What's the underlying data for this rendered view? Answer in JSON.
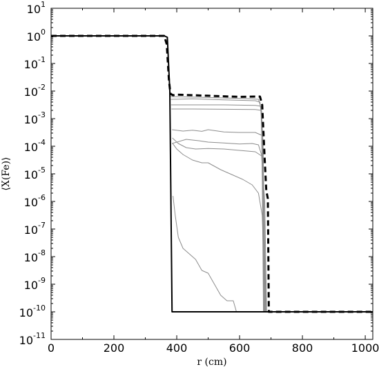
{
  "chart_data": {
    "type": "line",
    "title": "",
    "xlabel": "r (cm)",
    "ylabel": "⟨X(Fe)⟩",
    "xlim": [
      0,
      1024
    ],
    "ylim_exponents": [
      -11,
      1
    ],
    "y_scale": "log",
    "grid": false,
    "x_ticks": [
      0,
      200,
      400,
      600,
      800,
      1000
    ],
    "y_ticks": [
      {
        "base": "10",
        "exp": "1"
      },
      {
        "base": "10",
        "exp": "0"
      },
      {
        "base": "10",
        "exp": "-1"
      },
      {
        "base": "10",
        "exp": "-2"
      },
      {
        "base": "10",
        "exp": "-3"
      },
      {
        "base": "10",
        "exp": "-4"
      },
      {
        "base": "10",
        "exp": "-5"
      },
      {
        "base": "10",
        "exp": "-6"
      },
      {
        "base": "10",
        "exp": "-7"
      },
      {
        "base": "10",
        "exp": "-8"
      },
      {
        "base": "10",
        "exp": "-9"
      },
      {
        "base": "10",
        "exp": "-10"
      },
      {
        "base": "10",
        "exp": "-11"
      }
    ],
    "series": [
      {
        "style": "solid-black",
        "points": [
          [
            0,
            0
          ],
          [
            360,
            0
          ],
          [
            370,
            -0.05
          ],
          [
            378,
            -2
          ],
          [
            385,
            -10
          ],
          [
            1024,
            -10
          ]
        ]
      },
      {
        "style": "dashed-black",
        "points": [
          [
            0,
            0
          ],
          [
            360,
            0
          ],
          [
            368,
            -0.3
          ],
          [
            375,
            -1.6
          ],
          [
            380,
            -2.1
          ],
          [
            388,
            -2.15
          ],
          [
            400,
            -2.13
          ],
          [
            450,
            -2.15
          ],
          [
            500,
            -2.17
          ],
          [
            550,
            -2.19
          ],
          [
            600,
            -2.21
          ],
          [
            650,
            -2.2
          ],
          [
            665,
            -2.2
          ],
          [
            672,
            -2.5
          ],
          [
            680,
            -4.5
          ],
          [
            685,
            -5.6
          ],
          [
            690,
            -5.9
          ],
          [
            693,
            -10
          ],
          [
            1024,
            -10
          ]
        ]
      },
      {
        "style": "gray",
        "points": [
          [
            380,
            -2.2
          ],
          [
            450,
            -2.22
          ],
          [
            550,
            -2.25
          ],
          [
            640,
            -2.28
          ],
          [
            660,
            -2.3
          ],
          [
            668,
            -2.6
          ],
          [
            672,
            -4.5
          ],
          [
            676,
            -10
          ]
        ]
      },
      {
        "style": "gray",
        "points": [
          [
            381,
            -2.3
          ],
          [
            450,
            -2.28
          ],
          [
            550,
            -2.32
          ],
          [
            650,
            -2.35
          ],
          [
            665,
            -2.4
          ],
          [
            670,
            -3
          ],
          [
            674,
            -7
          ],
          [
            678,
            -10
          ]
        ]
      },
      {
        "style": "gray",
        "points": [
          [
            382,
            -2.5
          ],
          [
            450,
            -2.5
          ],
          [
            550,
            -2.5
          ],
          [
            650,
            -2.52
          ],
          [
            668,
            -2.55
          ],
          [
            673,
            -3.5
          ],
          [
            678,
            -10
          ]
        ]
      },
      {
        "style": "gray",
        "points": [
          [
            383,
            -2.65
          ],
          [
            450,
            -2.65
          ],
          [
            550,
            -2.66
          ],
          [
            650,
            -2.67
          ],
          [
            670,
            -2.7
          ],
          [
            675,
            -4
          ],
          [
            680,
            -10
          ]
        ]
      },
      {
        "style": "gray",
        "points": [
          [
            385,
            -3.4
          ],
          [
            420,
            -3.45
          ],
          [
            450,
            -3.42
          ],
          [
            480,
            -3.46
          ],
          [
            500,
            -3.4
          ],
          [
            550,
            -3.48
          ],
          [
            600,
            -3.5
          ],
          [
            650,
            -3.5
          ],
          [
            670,
            -3.6
          ],
          [
            677,
            -6
          ],
          [
            682,
            -10
          ]
        ]
      },
      {
        "style": "gray",
        "points": [
          [
            385,
            -3.9
          ],
          [
            430,
            -3.75
          ],
          [
            470,
            -3.8
          ],
          [
            500,
            -3.85
          ],
          [
            550,
            -3.88
          ],
          [
            600,
            -3.92
          ],
          [
            640,
            -3.9
          ],
          [
            660,
            -3.95
          ],
          [
            675,
            -4.5
          ],
          [
            684,
            -10
          ]
        ]
      },
      {
        "style": "gray",
        "points": [
          [
            386,
            -3.7
          ],
          [
            405,
            -3.9
          ],
          [
            430,
            -4.05
          ],
          [
            460,
            -4.1
          ],
          [
            500,
            -4.08
          ],
          [
            550,
            -4.1
          ],
          [
            600,
            -4.15
          ],
          [
            650,
            -4.2
          ],
          [
            670,
            -4.35
          ],
          [
            680,
            -6
          ],
          [
            686,
            -10
          ]
        ]
      },
      {
        "style": "gray",
        "points": [
          [
            387,
            -3.9
          ],
          [
            400,
            -4.1
          ],
          [
            420,
            -4.3
          ],
          [
            450,
            -4.5
          ],
          [
            480,
            -4.6
          ],
          [
            500,
            -4.6
          ],
          [
            540,
            -4.85
          ],
          [
            580,
            -5.05
          ],
          [
            610,
            -5.2
          ],
          [
            640,
            -5.4
          ],
          [
            660,
            -5.7
          ],
          [
            672,
            -6.5
          ],
          [
            682,
            -10
          ]
        ]
      },
      {
        "style": "gray",
        "points": [
          [
            388,
            -5.8
          ],
          [
            395,
            -6.5
          ],
          [
            405,
            -7.3
          ],
          [
            420,
            -7.7
          ],
          [
            440,
            -7.9
          ],
          [
            460,
            -8.1
          ],
          [
            480,
            -8.5
          ],
          [
            500,
            -8.6
          ],
          [
            520,
            -9
          ],
          [
            540,
            -9.4
          ],
          [
            560,
            -9.6
          ],
          [
            580,
            -9.6
          ],
          [
            590,
            -10
          ]
        ]
      }
    ]
  }
}
